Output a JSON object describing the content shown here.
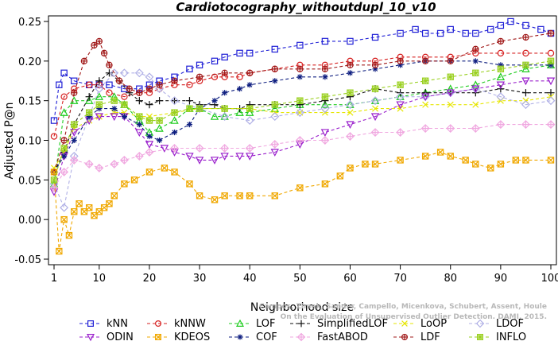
{
  "chart_data": {
    "type": "line",
    "title": "Cardiotocography_withoutdupl_10_v10",
    "xlabel": "Neighborhood size",
    "ylabel": "Adjusted P@n",
    "xlim": [
      1,
      100
    ],
    "ylim": [
      -0.05,
      0.25
    ],
    "xticks": [
      "1",
      "10",
      "20",
      "30",
      "40",
      "50",
      "60",
      "70",
      "80",
      "90",
      "100"
    ],
    "yticks": [
      "-0.05",
      "0.00",
      "0.05",
      "0.10",
      "0.15",
      "0.20",
      "0.25"
    ],
    "grid": false,
    "legend_position": "bottom",
    "watermark": "Campos, Zimek, Sander, Campello, Micenkova, Schubert, Assent, Houle\nOn the Evaluation of Unsupervised Outlier Detection. DAMI, 2015.",
    "series": [
      {
        "name": "kNN",
        "color": "#1f1fd6",
        "marker": "square",
        "line": "dashed",
        "x": [
          1,
          2,
          3,
          5,
          8,
          10,
          12,
          15,
          18,
          20,
          22,
          25,
          28,
          30,
          33,
          35,
          38,
          40,
          45,
          50,
          55,
          60,
          65,
          70,
          73,
          75,
          78,
          80,
          83,
          85,
          88,
          90,
          92,
          95,
          98,
          100
        ],
        "y": [
          0.125,
          0.17,
          0.185,
          0.175,
          0.17,
          0.17,
          0.17,
          0.165,
          0.165,
          0.17,
          0.175,
          0.18,
          0.19,
          0.195,
          0.2,
          0.205,
          0.21,
          0.21,
          0.215,
          0.22,
          0.225,
          0.225,
          0.23,
          0.235,
          0.24,
          0.235,
          0.235,
          0.24,
          0.235,
          0.235,
          0.24,
          0.245,
          0.25,
          0.245,
          0.24,
          0.235
        ]
      },
      {
        "name": "kNNW",
        "color": "#d62020",
        "marker": "circle",
        "line": "dashed",
        "x": [
          1,
          3,
          5,
          8,
          10,
          12,
          15,
          18,
          20,
          22,
          25,
          28,
          30,
          33,
          35,
          38,
          40,
          45,
          50,
          55,
          60,
          65,
          70,
          75,
          80,
          85,
          90,
          95,
          100
        ],
        "y": [
          0.105,
          0.155,
          0.165,
          0.17,
          0.17,
          0.16,
          0.155,
          0.16,
          0.16,
          0.165,
          0.17,
          0.17,
          0.175,
          0.18,
          0.18,
          0.18,
          0.185,
          0.19,
          0.195,
          0.195,
          0.2,
          0.2,
          0.205,
          0.205,
          0.205,
          0.21,
          0.21,
          0.21,
          0.21
        ]
      },
      {
        "name": "LOF",
        "color": "#1fcc1f",
        "marker": "triangle-up",
        "line": "dashed",
        "x": [
          1,
          3,
          5,
          8,
          10,
          13,
          15,
          18,
          20,
          22,
          25,
          28,
          30,
          33,
          35,
          38,
          40,
          45,
          50,
          55,
          60,
          65,
          70,
          75,
          80,
          85,
          90,
          95,
          100
        ],
        "y": [
          0.045,
          0.135,
          0.15,
          0.15,
          0.155,
          0.155,
          0.145,
          0.125,
          0.11,
          0.115,
          0.125,
          0.14,
          0.14,
          0.13,
          0.13,
          0.135,
          0.135,
          0.14,
          0.145,
          0.145,
          0.145,
          0.15,
          0.155,
          0.16,
          0.165,
          0.17,
          0.18,
          0.19,
          0.195
        ]
      },
      {
        "name": "SimplifiedLOF",
        "color": "#111111",
        "marker": "plus",
        "line": "dashed",
        "x": [
          1,
          3,
          5,
          8,
          10,
          12,
          14,
          16,
          18,
          20,
          22,
          25,
          28,
          30,
          33,
          35,
          38,
          40,
          45,
          50,
          55,
          60,
          65,
          70,
          75,
          80,
          85,
          90,
          95,
          100
        ],
        "y": [
          0.06,
          0.085,
          0.12,
          0.155,
          0.175,
          0.185,
          0.175,
          0.16,
          0.15,
          0.145,
          0.15,
          0.15,
          0.15,
          0.145,
          0.145,
          0.14,
          0.14,
          0.145,
          0.145,
          0.145,
          0.15,
          0.155,
          0.165,
          0.16,
          0.16,
          0.16,
          0.16,
          0.165,
          0.16,
          0.16
        ]
      },
      {
        "name": "LoOP",
        "color": "#e6e600",
        "marker": "x",
        "line": "dashed",
        "x": [
          1,
          3,
          5,
          8,
          10,
          13,
          15,
          18,
          20,
          25,
          30,
          35,
          40,
          45,
          50,
          55,
          60,
          65,
          70,
          75,
          80,
          85,
          90,
          95,
          100
        ],
        "y": [
          0.065,
          0.085,
          0.115,
          0.125,
          0.13,
          0.135,
          0.135,
          0.13,
          0.13,
          0.135,
          0.14,
          0.14,
          0.14,
          0.135,
          0.135,
          0.135,
          0.135,
          0.14,
          0.14,
          0.145,
          0.145,
          0.145,
          0.15,
          0.15,
          0.155
        ]
      },
      {
        "name": "LDOF",
        "color": "#b0b0e6",
        "marker": "diamond",
        "line": "dashed",
        "x": [
          1,
          3,
          5,
          8,
          10,
          13,
          15,
          18,
          20,
          22,
          25,
          30,
          35,
          40,
          45,
          50,
          55,
          60,
          65,
          70,
          75,
          80,
          85,
          90,
          95,
          100
        ],
        "y": [
          0.045,
          0.015,
          0.08,
          0.13,
          0.165,
          0.185,
          0.185,
          0.185,
          0.18,
          0.165,
          0.15,
          0.14,
          0.13,
          0.125,
          0.13,
          0.135,
          0.14,
          0.145,
          0.15,
          0.155,
          0.155,
          0.16,
          0.165,
          0.155,
          0.145,
          0.15
        ]
      },
      {
        "name": "ODIN",
        "color": "#9a20cc",
        "marker": "triangle-down",
        "line": "dashed",
        "x": [
          1,
          3,
          5,
          8,
          10,
          13,
          15,
          18,
          20,
          23,
          25,
          28,
          30,
          33,
          35,
          38,
          40,
          45,
          50,
          55,
          60,
          65,
          70,
          75,
          80,
          85,
          90,
          95,
          100
        ],
        "y": [
          0.035,
          0.08,
          0.11,
          0.125,
          0.13,
          0.13,
          0.13,
          0.11,
          0.095,
          0.09,
          0.085,
          0.08,
          0.075,
          0.075,
          0.08,
          0.08,
          0.08,
          0.085,
          0.095,
          0.11,
          0.12,
          0.13,
          0.145,
          0.155,
          0.16,
          0.165,
          0.17,
          0.175,
          0.175
        ]
      },
      {
        "name": "COF",
        "color": "#0f1f80",
        "marker": "asterisk",
        "line": "dashed",
        "x": [
          1,
          3,
          5,
          8,
          10,
          13,
          15,
          18,
          20,
          22,
          25,
          28,
          30,
          33,
          35,
          38,
          40,
          45,
          50,
          55,
          60,
          65,
          70,
          75,
          80,
          85,
          90,
          95,
          100
        ],
        "y": [
          0.06,
          0.08,
          0.1,
          0.13,
          0.14,
          0.14,
          0.13,
          0.12,
          0.105,
          0.1,
          0.11,
          0.12,
          0.14,
          0.15,
          0.16,
          0.165,
          0.17,
          0.175,
          0.18,
          0.18,
          0.185,
          0.19,
          0.195,
          0.2,
          0.2,
          0.2,
          0.195,
          0.195,
          0.195
        ]
      },
      {
        "name": "FastABOD",
        "color": "#f0a8e0",
        "marker": "diamond-plus",
        "line": "dashed",
        "x": [
          1,
          3,
          5,
          8,
          10,
          13,
          15,
          18,
          20,
          25,
          30,
          35,
          40,
          45,
          50,
          55,
          60,
          65,
          70,
          75,
          80,
          85,
          90,
          95,
          100
        ],
        "y": [
          0.04,
          0.06,
          0.075,
          0.07,
          0.065,
          0.07,
          0.075,
          0.08,
          0.085,
          0.09,
          0.09,
          0.09,
          0.09,
          0.095,
          0.1,
          0.1,
          0.105,
          0.11,
          0.11,
          0.115,
          0.115,
          0.115,
          0.12,
          0.12,
          0.12
        ]
      },
      {
        "name": "LDF",
        "color": "#a01818",
        "marker": "circle-plus",
        "line": "dashed",
        "x": [
          1,
          3,
          5,
          7,
          9,
          10,
          11,
          12,
          14,
          16,
          18,
          20,
          22,
          25,
          30,
          35,
          40,
          45,
          50,
          55,
          60,
          65,
          70,
          75,
          80,
          85,
          90,
          95,
          100
        ],
        "y": [
          0.06,
          0.1,
          0.16,
          0.2,
          0.22,
          0.225,
          0.21,
          0.195,
          0.175,
          0.165,
          0.16,
          0.165,
          0.17,
          0.175,
          0.18,
          0.185,
          0.185,
          0.19,
          0.19,
          0.19,
          0.195,
          0.195,
          0.2,
          0.2,
          0.2,
          0.215,
          0.225,
          0.23,
          0.235
        ]
      },
      {
        "name": "KDEOS",
        "color": "#f0a800",
        "marker": "square-x",
        "line": "dashed",
        "x": [
          1,
          2,
          3,
          4,
          5,
          6,
          7,
          8,
          9,
          10,
          11,
          12,
          13,
          15,
          17,
          20,
          23,
          25,
          28,
          30,
          33,
          35,
          38,
          40,
          45,
          50,
          55,
          58,
          60,
          63,
          65,
          70,
          75,
          78,
          80,
          83,
          85,
          88,
          90,
          93,
          95,
          100
        ],
        "y": [
          0.06,
          -0.04,
          0.0,
          -0.02,
          0.01,
          0.02,
          0.01,
          0.015,
          0.005,
          0.01,
          0.015,
          0.02,
          0.03,
          0.045,
          0.05,
          0.06,
          0.065,
          0.06,
          0.045,
          0.03,
          0.025,
          0.03,
          0.03,
          0.03,
          0.03,
          0.04,
          0.045,
          0.055,
          0.065,
          0.07,
          0.07,
          0.075,
          0.08,
          0.085,
          0.08,
          0.075,
          0.07,
          0.065,
          0.07,
          0.075,
          0.075,
          0.075
        ]
      },
      {
        "name": "INFLO",
        "color": "#9ad020",
        "marker": "square-star",
        "line": "dashed",
        "x": [
          1,
          3,
          5,
          8,
          10,
          13,
          15,
          18,
          20,
          22,
          25,
          28,
          30,
          35,
          40,
          45,
          50,
          55,
          60,
          65,
          70,
          75,
          80,
          85,
          90,
          95,
          100
        ],
        "y": [
          0.05,
          0.09,
          0.12,
          0.135,
          0.145,
          0.15,
          0.145,
          0.13,
          0.125,
          0.125,
          0.135,
          0.14,
          0.14,
          0.14,
          0.14,
          0.145,
          0.15,
          0.155,
          0.16,
          0.165,
          0.17,
          0.175,
          0.18,
          0.185,
          0.19,
          0.195,
          0.2
        ]
      }
    ],
    "legend_rows": [
      [
        "kNN",
        "kNNW",
        "LOF",
        "SimplifiedLOF",
        "LoOP",
        "LDOF"
      ],
      [
        "ODIN",
        "KDEOS",
        "COF",
        "FastABOD",
        "LDF",
        "INFLO"
      ]
    ]
  }
}
